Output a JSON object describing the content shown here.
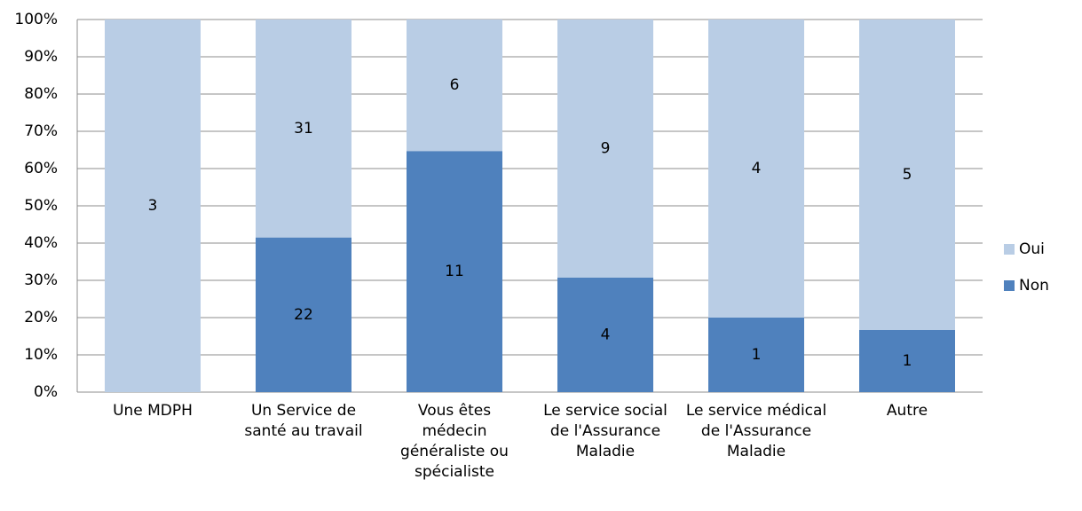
{
  "chart_data": {
    "type": "bar",
    "stacking": "percent",
    "categories": [
      "Une MDPH",
      "Un Service de santé au travail",
      "Vous êtes médecin généraliste ou spécialiste",
      "Le service social de l'Assurance Maladie",
      "Le service médical de l'Assurance Maladie",
      "Autre"
    ],
    "series": [
      {
        "name": "Non",
        "color": "#4f81bd",
        "values": [
          0,
          22,
          11,
          4,
          1,
          1
        ]
      },
      {
        "name": "Oui",
        "color": "#b9cde5",
        "values": [
          3,
          31,
          6,
          9,
          4,
          5
        ]
      }
    ],
    "ylim": [
      0,
      100
    ],
    "yticks": [
      {
        "value": 0,
        "label": "0%"
      },
      {
        "value": 10,
        "label": "10%"
      },
      {
        "value": 20,
        "label": "20%"
      },
      {
        "value": 30,
        "label": "30%"
      },
      {
        "value": 40,
        "label": "40%"
      },
      {
        "value": 50,
        "label": "50%"
      },
      {
        "value": 60,
        "label": "60%"
      },
      {
        "value": 70,
        "label": "70%"
      },
      {
        "value": 80,
        "label": "80%"
      },
      {
        "value": 90,
        "label": "90%"
      },
      {
        "value": 100,
        "label": "100%"
      }
    ],
    "grid": true,
    "legend": "right"
  }
}
